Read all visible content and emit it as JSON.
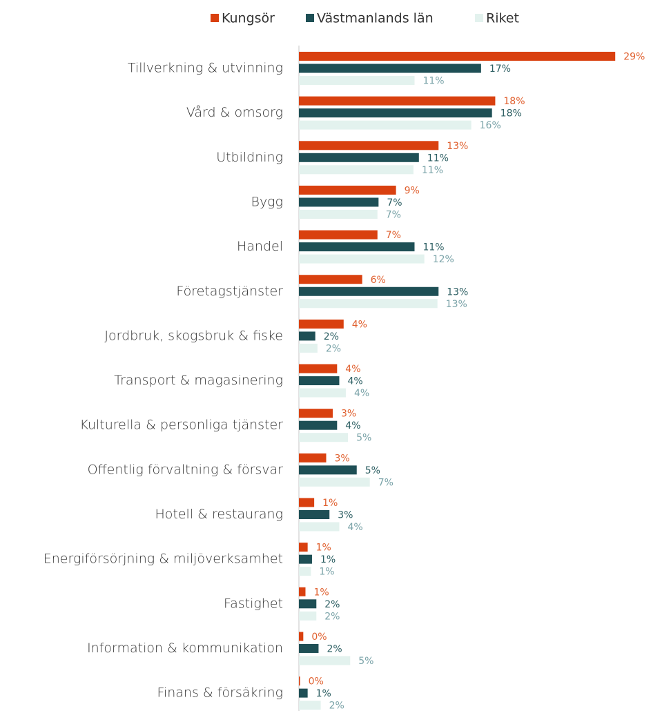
{
  "chart_data": {
    "type": "bar",
    "orientation": "horizontal",
    "categories": [
      "Tillverkning & utvinning",
      "Vård & omsorg",
      "Utbildning",
      "Bygg",
      "Handel",
      "Företagstjänster",
      "Jordbruk, skogsbruk & fiske",
      "Transport & magasinering",
      "Kulturella & personliga tjänster",
      "Offentlig förvaltning & försvar",
      "Hotell & restaurang",
      "Energiförsörjning & miljöverksamhet",
      "Fastighet",
      "Information & kommunikation",
      "Finans & försäkring"
    ],
    "series": [
      {
        "name": "Kungsör",
        "color": "#d9400f",
        "label_color": "#e0602f",
        "values": [
          29.0,
          18.0,
          12.8,
          8.9,
          7.2,
          5.8,
          4.1,
          3.5,
          3.1,
          2.5,
          1.4,
          0.8,
          0.6,
          0.4,
          0.1
        ],
        "value_labels": [
          "29%",
          "18%",
          "13%",
          "9%",
          "7%",
          "6%",
          "4%",
          "4%",
          "3%",
          "3%",
          "1%",
          "1%",
          "1%",
          "0%",
          "0%"
        ]
      },
      {
        "name": "Västmanlands län",
        "color": "#1e4f55",
        "label_color": "#2d5f63",
        "values": [
          16.7,
          17.7,
          11.0,
          7.3,
          10.6,
          12.8,
          1.5,
          3.7,
          3.5,
          5.3,
          2.8,
          1.2,
          1.6,
          1.8,
          0.8
        ],
        "value_labels": [
          "17%",
          "18%",
          "11%",
          "7%",
          "11%",
          "13%",
          "2%",
          "4%",
          "4%",
          "5%",
          "3%",
          "1%",
          "2%",
          "2%",
          "1%"
        ]
      },
      {
        "name": "Riket",
        "color": "#e3f2ee",
        "label_color": "#7aa3a8",
        "values": [
          10.6,
          15.8,
          10.5,
          7.2,
          11.5,
          12.7,
          1.7,
          4.3,
          4.5,
          6.5,
          3.7,
          1.1,
          1.6,
          4.7,
          2.0
        ],
        "value_labels": [
          "11%",
          "16%",
          "11%",
          "7%",
          "12%",
          "13%",
          "2%",
          "4%",
          "5%",
          "7%",
          "4%",
          "1%",
          "2%",
          "5%",
          "2%"
        ]
      }
    ]
  }
}
